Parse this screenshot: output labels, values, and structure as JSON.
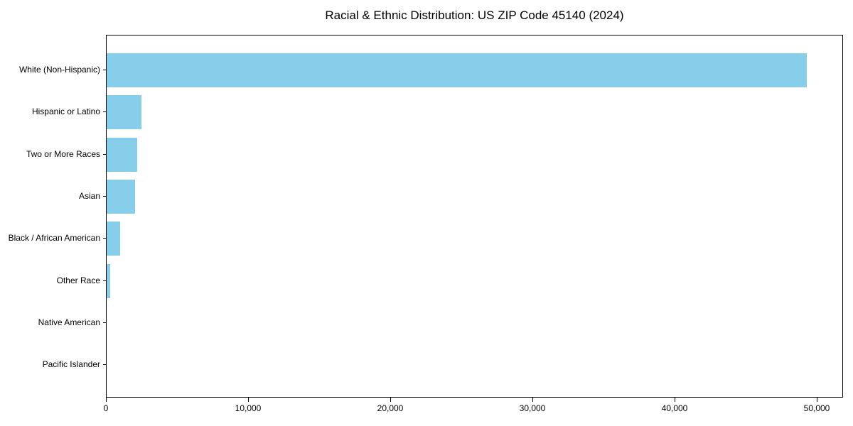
{
  "figure": {
    "title": "Racial & Ethnic Distribution: US ZIP Code 45140 (2024)"
  },
  "chart_data": {
    "type": "bar",
    "orientation": "horizontal",
    "title": "Racial & Ethnic Distribution: US ZIP Code 45140 (2024)",
    "categories": [
      "White (Non-Hispanic)",
      "Hispanic or Latino",
      "Two or More Races",
      "Asian",
      "Black / African American",
      "Other Race",
      "Native American",
      "Pacific Islander"
    ],
    "values": [
      49350,
      2440,
      2150,
      2010,
      950,
      270,
      0,
      0
    ],
    "xlabel": "",
    "ylabel": "",
    "xlim": [
      0,
      51850
    ],
    "x_ticks": [
      0,
      10000,
      20000,
      30000,
      40000,
      50000
    ],
    "x_tick_labels": [
      "0",
      "10,000",
      "20,000",
      "30,000",
      "40,000",
      "50,000"
    ],
    "bar_color": "#87CEEB",
    "background_color": "#FFFFFF",
    "spine_color": "#000000",
    "grid": false,
    "legend": "none",
    "value_labels_shown": false
  }
}
